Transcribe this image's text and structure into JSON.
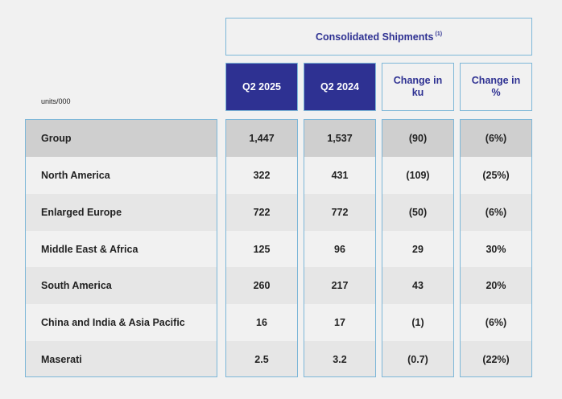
{
  "header": {
    "title": "Consolidated Shipments",
    "footnote_marker": "(1)"
  },
  "units_label": "units/000",
  "columns": [
    "Q2 2025",
    "Q2 2024",
    "Change in ku",
    "Change in %"
  ],
  "rows": [
    {
      "label": "Group",
      "values": [
        "1,447",
        "1,537",
        "(90)",
        "(6%)"
      ]
    },
    {
      "label": "North America",
      "values": [
        "322",
        "431",
        "(109)",
        "(25%)"
      ]
    },
    {
      "label": "Enlarged Europe",
      "values": [
        "722",
        "772",
        "(50)",
        "(6%)"
      ]
    },
    {
      "label": "Middle East & Africa",
      "values": [
        "125",
        "96",
        "29",
        "30%"
      ]
    },
    {
      "label": "South America",
      "values": [
        "260",
        "217",
        "43",
        "20%"
      ]
    },
    {
      "label": "China and India & Asia Pacific",
      "values": [
        "16",
        "17",
        "(1)",
        "(6%)"
      ]
    },
    {
      "label": "Maserati",
      "values": [
        "2.5",
        "3.2",
        "(0.7)",
        "(22%)"
      ]
    }
  ],
  "colors": {
    "header_dark": "#2e3192",
    "border": "#7db7d8",
    "group_row": "#cfcfcf"
  }
}
